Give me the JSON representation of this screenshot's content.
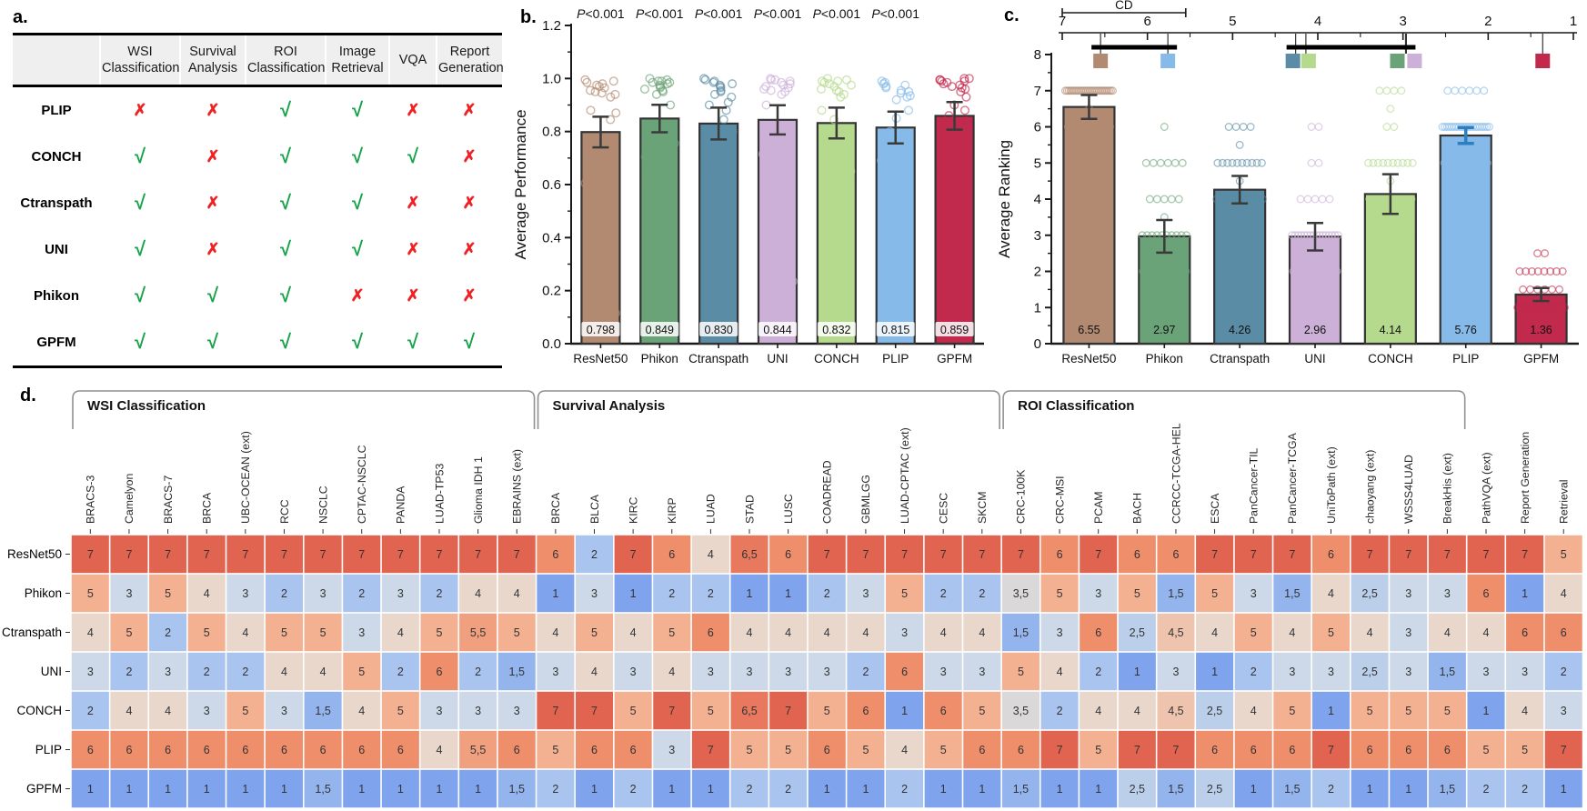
{
  "panel_a": {
    "label": "a.",
    "col_headers": [
      "",
      "WSI Classification",
      "Survival Analysis",
      "ROI Classification",
      "Image Retrieval",
      "VQA",
      "Report Generation"
    ],
    "check_glyph": "√",
    "cross_glyph": "✗",
    "check_color": "#16a34a",
    "cross_color": "#ee2224",
    "rows": [
      {
        "model": "PLIP",
        "marks": [
          0,
          0,
          1,
          1,
          0,
          0
        ]
      },
      {
        "model": "CONCH",
        "marks": [
          1,
          0,
          1,
          1,
          1,
          0
        ]
      },
      {
        "model": "Ctranspath",
        "marks": [
          1,
          0,
          1,
          1,
          0,
          0
        ]
      },
      {
        "model": "UNI",
        "marks": [
          1,
          0,
          1,
          1,
          0,
          0
        ]
      },
      {
        "model": "Phikon",
        "marks": [
          1,
          1,
          1,
          0,
          0,
          0
        ]
      },
      {
        "model": "GPFM",
        "marks": [
          1,
          1,
          1,
          1,
          1,
          1
        ]
      }
    ]
  },
  "chart_data": [
    {
      "id": "panel_b",
      "type": "bar",
      "panel_label": "b.",
      "ylabel": "Average Performance",
      "ylim": [
        0,
        1.2
      ],
      "ytick_major": 0.2,
      "ytick_minor": 0.1,
      "grid": false,
      "categories": [
        "ResNet50",
        "Phikon",
        "Ctranspath",
        "UNI",
        "CONCH",
        "PLIP",
        "GPFM"
      ],
      "values": [
        0.798,
        0.849,
        0.83,
        0.844,
        0.832,
        0.815,
        0.859
      ],
      "errors": [
        0.058,
        0.052,
        0.06,
        0.055,
        0.058,
        0.06,
        0.052
      ],
      "bar_labels": [
        "0.798",
        "0.849",
        "0.830",
        "0.844",
        "0.832",
        "0.815",
        "0.859"
      ],
      "p_labels": [
        "P<0.001",
        "P<0.001",
        "P<0.001",
        "P<0.001",
        "P<0.001",
        "P<0.001"
      ],
      "colors": [
        "#b28a71",
        "#6ba378",
        "#5a8ca5",
        "#ccb0d8",
        "#b5d98d",
        "#86bbe9",
        "#c12a4d"
      ],
      "scatter": [
        [
          0.995,
          0.99,
          0.985,
          0.98,
          0.975,
          0.97,
          0.965,
          0.955,
          0.95,
          0.945,
          0.94,
          0.93,
          0.88,
          0.87,
          0.845,
          0.77,
          0.755,
          0.74,
          0.725,
          0.71,
          0.7,
          0.685,
          0.67,
          0.66,
          0.645,
          0.635,
          0.62,
          0.605,
          0.575,
          0.52,
          0.115
        ],
        [
          1.0,
          0.995,
          0.99,
          0.99,
          0.985,
          0.985,
          0.98,
          0.975,
          0.97,
          0.965,
          0.96,
          0.955,
          0.95,
          0.94,
          0.9,
          0.8,
          0.78,
          0.77,
          0.755,
          0.745,
          0.73,
          0.72,
          0.705,
          0.69,
          0.68,
          0.59,
          0.27
        ],
        [
          1.0,
          0.995,
          0.99,
          0.985,
          0.98,
          0.975,
          0.97,
          0.965,
          0.955,
          0.95,
          0.94,
          0.93,
          0.91,
          0.9,
          0.88,
          0.845,
          0.8,
          0.72,
          0.71,
          0.7,
          0.69,
          0.68,
          0.665,
          0.655,
          0.645,
          0.63,
          0.6,
          0.13
        ],
        [
          1.0,
          0.995,
          0.995,
          0.99,
          0.985,
          0.98,
          0.975,
          0.97,
          0.965,
          0.96,
          0.955,
          0.95,
          0.94,
          0.9,
          0.8,
          0.775,
          0.76,
          0.745,
          0.73,
          0.715,
          0.7,
          0.69,
          0.68,
          0.665,
          0.655,
          0.57,
          0.235
        ],
        [
          1.0,
          0.995,
          0.99,
          0.99,
          0.985,
          0.98,
          0.975,
          0.97,
          0.96,
          0.955,
          0.95,
          0.94,
          0.93,
          0.88,
          0.845,
          0.72,
          0.71,
          0.7,
          0.69,
          0.68,
          0.67,
          0.66,
          0.65,
          0.64,
          0.63,
          0.14
        ],
        [
          0.99,
          0.985,
          0.98,
          0.975,
          0.97,
          0.965,
          0.955,
          0.95,
          0.945,
          0.935,
          0.93,
          0.92,
          0.88,
          0.85,
          0.8,
          0.72,
          0.71,
          0.7,
          0.69,
          0.68,
          0.67,
          0.655,
          0.64,
          0.625,
          0.6,
          0.095
        ],
        [
          1.0,
          1.0,
          0.995,
          0.995,
          0.99,
          0.99,
          0.985,
          0.98,
          0.975,
          0.97,
          0.965,
          0.96,
          0.95,
          0.93,
          0.9,
          0.88,
          0.86,
          0.84,
          0.82,
          0.8,
          0.78,
          0.76,
          0.73,
          0.7,
          0.68,
          0.655,
          0.18
        ]
      ]
    },
    {
      "id": "panel_c",
      "type": "bar",
      "panel_label": "c.",
      "ylabel": "Average Ranking",
      "ylim": [
        0,
        8
      ],
      "ytick_major": 1,
      "ytick_minor": 0.5,
      "grid": false,
      "categories": [
        "ResNet50",
        "Phikon",
        "Ctranspath",
        "UNI",
        "CONCH",
        "PLIP",
        "GPFM"
      ],
      "values": [
        6.55,
        2.97,
        4.26,
        2.96,
        4.14,
        5.76,
        1.36
      ],
      "errors": [
        0.33,
        0.45,
        0.38,
        0.38,
        0.55,
        0.22,
        0.18
      ],
      "bar_labels": [
        "6.55",
        "2.97",
        "4.26",
        "2.96",
        "4.14",
        "5.76",
        "1.36"
      ],
      "colors": [
        "#b28a71",
        "#6ba378",
        "#5a8ca5",
        "#ccb0d8",
        "#b5d98d",
        "#86bbe9",
        "#c12a4d"
      ],
      "error_colors": [
        "#3a3a3a",
        "#3a3a3a",
        "#3a3a3a",
        "#3a3a3a",
        "#3a3a3a",
        "#2d7fc1",
        "#3a3a3a"
      ],
      "cd_diagram": {
        "label": "CD",
        "axis_start": 7,
        "axis_end": 1,
        "cd_value": 1.45,
        "positions": [
          6.55,
          2.97,
          4.26,
          2.96,
          4.14,
          5.76,
          1.36
        ],
        "groups": [
          [
            6.55,
            5.76
          ],
          [
            4.26,
            2.96
          ]
        ]
      }
    },
    {
      "id": "panel_d",
      "type": "heatmap",
      "panel_label": "d.",
      "legend_position": "none",
      "rows": [
        "ResNet50",
        "Phikon",
        "Ctranspath",
        "UNI",
        "CONCH",
        "PLIP",
        "GPFM"
      ],
      "columns": [
        "BRACS-3",
        "Camelyon",
        "BRACS-7",
        "BRCA",
        "UBC-OCEAN (ext)",
        "RCC",
        "NSCLC",
        "CPTAC-NSCLC",
        "PANDA",
        "LUAD-TP53",
        "Glioma IDH 1",
        "EBRAINS (ext)",
        "BRCA",
        "BLCA",
        "KIRC",
        "KIRP",
        "LUAD",
        "STAD",
        "LUSC",
        "COADREAD",
        "GBMLGG",
        "LUAD-CPTAC (ext)",
        "CESC",
        "SKCM",
        "CRC-100K",
        "CRC-MSI",
        "PCAM",
        "BACH",
        "CCRCC-TCGA-HEL",
        "ESCA",
        "PanCancer-TIL",
        "PanCancer-TCGA",
        "UniToPath (ext)",
        "chaoyang (ext)",
        "WSSS4LUAD",
        "BreakHis (ext)",
        "PathVQA (ext)",
        "Report Generation",
        "Retrieval"
      ],
      "col_groups": [
        {
          "label": "WSI Classification",
          "start": 0,
          "end": 11
        },
        {
          "label": "Survival Analysis",
          "start": 12,
          "end": 23
        },
        {
          "label": "ROI Classification",
          "start": 24,
          "end": 35
        }
      ],
      "values": [
        [
          7,
          7,
          7,
          7,
          7,
          7,
          7,
          7,
          7,
          7,
          7,
          7,
          6,
          2,
          7,
          6,
          4,
          6.5,
          6,
          7,
          7,
          7,
          7,
          7,
          7,
          6,
          7,
          6,
          6,
          7,
          7,
          7,
          6,
          7,
          7,
          7,
          7,
          7,
          5
        ],
        [
          5,
          3,
          5,
          4,
          3,
          2,
          3,
          2,
          3,
          2,
          4,
          4,
          1,
          3,
          1,
          2,
          2,
          1,
          1,
          2,
          3,
          5,
          2,
          2,
          3.5,
          5,
          3,
          5,
          1.5,
          5,
          3,
          1.5,
          4,
          2.5,
          3,
          3,
          6,
          1,
          4
        ],
        [
          4,
          5,
          2,
          5,
          4,
          5,
          5,
          3,
          4,
          5,
          5.5,
          5,
          4,
          5,
          4,
          5,
          6,
          4,
          4,
          4,
          4,
          3,
          4,
          4,
          1.5,
          3,
          6,
          2.5,
          4.5,
          4,
          5,
          4,
          5,
          4,
          3,
          4,
          4,
          6,
          6
        ],
        [
          3,
          2,
          3,
          2,
          2,
          4,
          4,
          5,
          2,
          6,
          2,
          1.5,
          3,
          4,
          3,
          4,
          3,
          3,
          3,
          3,
          2,
          6,
          3,
          3,
          5,
          4,
          2,
          1,
          3,
          1,
          2,
          3,
          3,
          2.5,
          3,
          1.5,
          3,
          3,
          2
        ],
        [
          2,
          4,
          4,
          3,
          5,
          3,
          1.5,
          4,
          5,
          3,
          3,
          3,
          7,
          7,
          5,
          7,
          5,
          6.5,
          7,
          5,
          6,
          1,
          6,
          5,
          3.5,
          2,
          4,
          4,
          4.5,
          2.5,
          4,
          5,
          1,
          5,
          5,
          5,
          1,
          4,
          3
        ],
        [
          6,
          6,
          6,
          6,
          6,
          6,
          6,
          6,
          6,
          4,
          5.5,
          6,
          5,
          6,
          6,
          3,
          7,
          5,
          5,
          6,
          5,
          4,
          5,
          6,
          6,
          7,
          5,
          7,
          7,
          6,
          6,
          6,
          7,
          6,
          6,
          6,
          5,
          5,
          7
        ],
        [
          1,
          1,
          1,
          1,
          1,
          1,
          1.5,
          1,
          1,
          1,
          1,
          1.5,
          2,
          1,
          2,
          1,
          1,
          2,
          2,
          1,
          1,
          2,
          1,
          1,
          1.5,
          1,
          1,
          2.5,
          1.5,
          2.5,
          1,
          1.5,
          2,
          1,
          1,
          1.5,
          2,
          2,
          1
        ]
      ],
      "colormap": {
        "1": "#7fa3ed",
        "2": "#a9c4ee",
        "3": "#cdd9e8",
        "4": "#e9d7cb",
        "5": "#f4b192",
        "6": "#ee8e6b",
        "7": "#e16450"
      }
    }
  ]
}
